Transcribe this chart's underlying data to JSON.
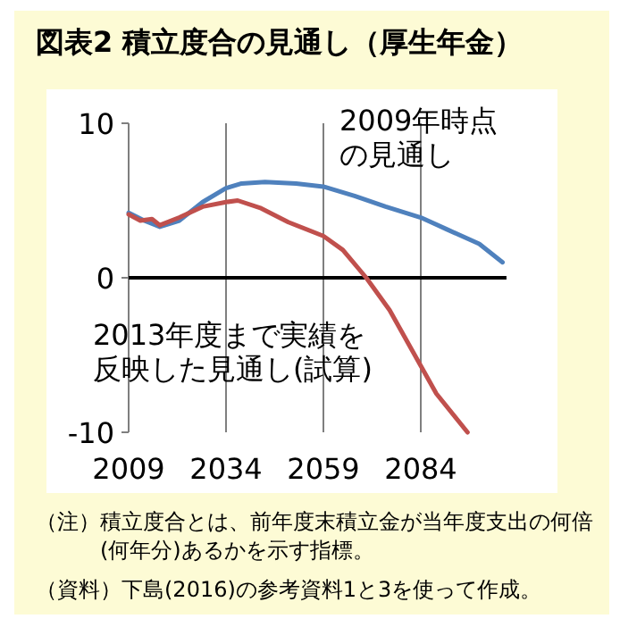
{
  "chart_data": {
    "type": "line",
    "title": "図表2 積立度合の見通し（厚生年金）",
    "xlim": [
      2009,
      2106
    ],
    "xticks": [
      2009,
      2034,
      2059,
      2084
    ],
    "ylim": [
      -10,
      10
    ],
    "yticks": [
      -10,
      0,
      10
    ],
    "grid": "x",
    "marker": "none",
    "line_style": "solid",
    "series": [
      {
        "name": "2009年時点の見通し",
        "color": "#4f81bd",
        "x": [
          2009,
          2013,
          2017,
          2022,
          2028,
          2034,
          2038,
          2044,
          2052,
          2059,
          2067,
          2075,
          2084,
          2091,
          2099,
          2105
        ],
        "values": [
          4.2,
          3.7,
          3.3,
          3.7,
          4.9,
          5.8,
          6.1,
          6.2,
          6.1,
          5.9,
          5.3,
          4.6,
          3.9,
          3.1,
          2.2,
          1.0
        ]
      },
      {
        "name": "2013年度まで実績を反映した見通し(試算)",
        "color": "#c0504d",
        "x": [
          2009,
          2012,
          2015,
          2017,
          2022,
          2028,
          2034,
          2037,
          2043,
          2050,
          2059,
          2064,
          2070,
          2076,
          2082,
          2088,
          2096
        ],
        "values": [
          4.1,
          3.7,
          3.8,
          3.4,
          3.9,
          4.6,
          4.9,
          5.0,
          4.5,
          3.6,
          2.7,
          1.8,
          0,
          -2.1,
          -4.8,
          -7.5,
          -10
        ]
      }
    ],
    "annotations": [
      "（注）積立度合とは、前年度末積立金が当年度支出の何倍(何年分)あるかを示す指標。",
      "（資料）下島(2016)の参考資料1と3を使って作成。"
    ]
  }
}
